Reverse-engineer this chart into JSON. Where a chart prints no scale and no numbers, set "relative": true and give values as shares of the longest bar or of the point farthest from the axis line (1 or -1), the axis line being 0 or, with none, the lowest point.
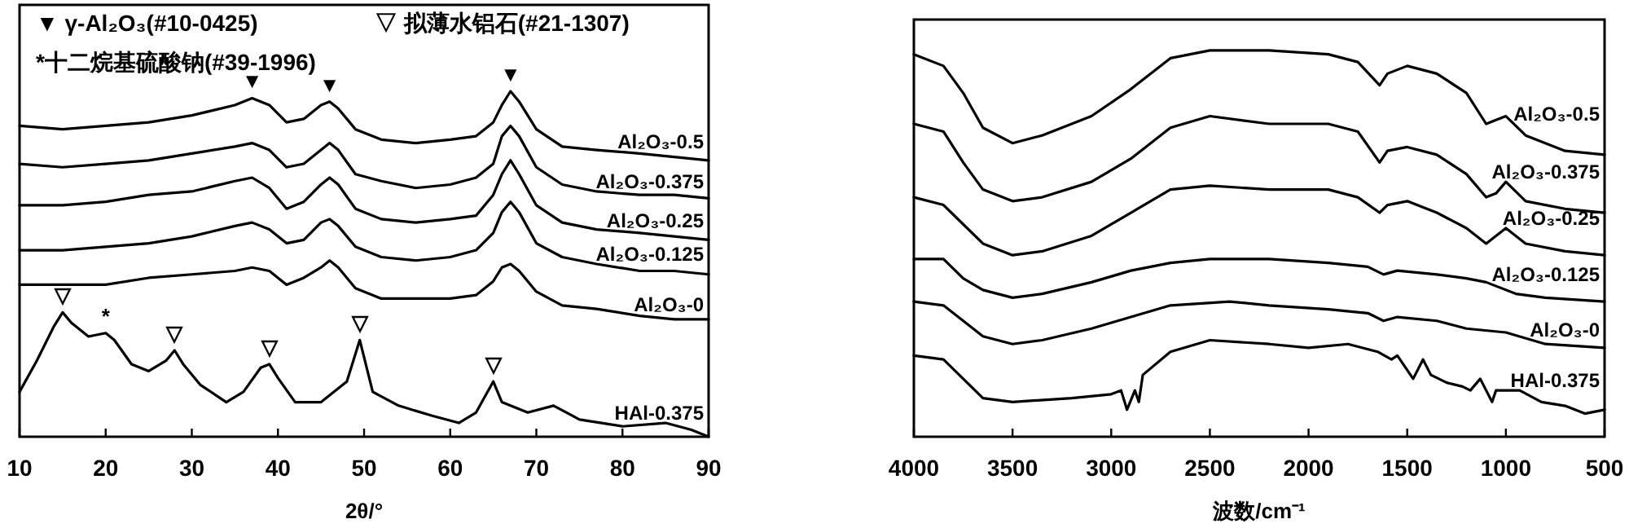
{
  "chart_data": [
    {
      "type": "line",
      "relative": true,
      "xlabel": "2θ/°",
      "xlim": [
        10,
        90
      ],
      "xticks": [
        10,
        20,
        30,
        40,
        50,
        60,
        70,
        80,
        90
      ],
      "x": [
        10,
        15,
        20,
        25,
        30,
        35,
        37,
        39,
        41,
        43,
        45,
        46,
        47,
        49,
        52,
        56,
        60,
        63,
        65,
        66,
        67,
        68,
        70,
        73,
        77,
        82,
        86,
        90
      ],
      "series": [
        {
          "name": "Al₂O₃-0.5",
          "color": "#000000",
          "values": [
            0.9,
            0.89,
            0.9,
            0.91,
            0.93,
            0.96,
            0.98,
            0.96,
            0.91,
            0.92,
            0.96,
            0.97,
            0.95,
            0.89,
            0.86,
            0.85,
            0.86,
            0.87,
            0.91,
            0.96,
            1.0,
            0.97,
            0.89,
            0.84,
            0.83,
            0.82,
            0.81,
            0.8
          ]
        },
        {
          "name": "Al₂O₃-0.375",
          "color": "#000000",
          "values": [
            0.79,
            0.78,
            0.79,
            0.8,
            0.82,
            0.84,
            0.85,
            0.83,
            0.78,
            0.79,
            0.83,
            0.85,
            0.83,
            0.76,
            0.74,
            0.72,
            0.73,
            0.75,
            0.79,
            0.87,
            0.9,
            0.87,
            0.78,
            0.73,
            0.71,
            0.7,
            0.7,
            0.69
          ]
        },
        {
          "name": "Al₂O₃-0.25",
          "color": "#000000",
          "values": [
            0.67,
            0.67,
            0.68,
            0.7,
            0.71,
            0.74,
            0.75,
            0.72,
            0.66,
            0.68,
            0.73,
            0.75,
            0.73,
            0.66,
            0.63,
            0.62,
            0.63,
            0.64,
            0.7,
            0.76,
            0.8,
            0.76,
            0.67,
            0.62,
            0.6,
            0.59,
            0.58,
            0.57
          ]
        },
        {
          "name": "Al₂O₃-0.125",
          "color": "#000000",
          "values": [
            0.54,
            0.54,
            0.55,
            0.56,
            0.58,
            0.61,
            0.62,
            0.6,
            0.56,
            0.57,
            0.62,
            0.63,
            0.61,
            0.55,
            0.52,
            0.51,
            0.52,
            0.54,
            0.59,
            0.65,
            0.68,
            0.65,
            0.56,
            0.52,
            0.5,
            0.48,
            0.48,
            0.47
          ]
        },
        {
          "name": "Al₂O₃-0",
          "color": "#000000",
          "values": [
            0.44,
            0.44,
            0.44,
            0.46,
            0.47,
            0.48,
            0.49,
            0.48,
            0.44,
            0.46,
            0.49,
            0.51,
            0.49,
            0.43,
            0.4,
            0.4,
            0.4,
            0.41,
            0.45,
            0.49,
            0.5,
            0.48,
            0.42,
            0.38,
            0.37,
            0.35,
            0.34,
            0.34
          ]
        },
        {
          "name": "HAl-0.375",
          "color": "#000000",
          "x": [
            10,
            12,
            14,
            15,
            16,
            18,
            20,
            21,
            23,
            25,
            27,
            28,
            29,
            31,
            34,
            36,
            38,
            39,
            40,
            42,
            45,
            48,
            49.5,
            51,
            54,
            58,
            61,
            63,
            65,
            66,
            69,
            72,
            75,
            80,
            85,
            88,
            90
          ],
          "values": [
            0.13,
            0.22,
            0.32,
            0.36,
            0.33,
            0.29,
            0.3,
            0.28,
            0.21,
            0.19,
            0.22,
            0.25,
            0.21,
            0.15,
            0.1,
            0.13,
            0.2,
            0.21,
            0.17,
            0.1,
            0.1,
            0.16,
            0.28,
            0.13,
            0.09,
            0.06,
            0.04,
            0.07,
            0.16,
            0.1,
            0.07,
            0.09,
            0.05,
            0.03,
            0.04,
            0.02,
            0.0
          ]
        }
      ],
      "annotations": [
        "▼ γ-Al₂O₃(#10-0425)",
        "▽ 拟薄水铝石(#21-1307)",
        "*十二烷基硫酸钠(#39-1996)",
        {
          "text": "▼",
          "x": 37,
          "y": 0.98
        },
        {
          "text": "▼",
          "x": 46,
          "y": 0.97
        },
        {
          "text": "▼",
          "x": 67,
          "y": 1.0
        },
        {
          "text": "▽",
          "x": 15,
          "y": 0.36
        },
        {
          "text": "*",
          "x": 20,
          "y": 0.3
        },
        {
          "text": "▽",
          "x": 28,
          "y": 0.25
        },
        {
          "text": "▽",
          "x": 39,
          "y": 0.21
        },
        {
          "text": "▽",
          "x": 49.5,
          "y": 0.28
        },
        {
          "text": "▽",
          "x": 65,
          "y": 0.16
        }
      ]
    },
    {
      "type": "line",
      "relative": true,
      "xlabel": "波数/cm⁻¹",
      "xlim": [
        4000,
        500
      ],
      "xticks": [
        4000,
        3500,
        3000,
        2500,
        2000,
        1500,
        1000,
        500
      ],
      "x": [
        4000,
        3850,
        3750,
        3650,
        3500,
        3350,
        3100,
        2900,
        2700,
        2500,
        2200,
        1900,
        1750,
        1640,
        1600,
        1500,
        1350,
        1200,
        1100,
        1050,
        1000,
        900,
        700,
        500
      ],
      "series": [
        {
          "name": "Al₂O₃-0.5",
          "color": "#000000",
          "values": [
            0.99,
            0.96,
            0.89,
            0.8,
            0.76,
            0.78,
            0.83,
            0.9,
            0.98,
            1.0,
            1.0,
            0.99,
            0.97,
            0.91,
            0.94,
            0.96,
            0.94,
            0.89,
            0.81,
            0.82,
            0.83,
            0.78,
            0.74,
            0.73
          ]
        },
        {
          "name": "Al₂O₃-0.375",
          "color": "#000000",
          "values": [
            0.81,
            0.79,
            0.71,
            0.64,
            0.61,
            0.62,
            0.66,
            0.72,
            0.8,
            0.83,
            0.81,
            0.81,
            0.79,
            0.71,
            0.74,
            0.75,
            0.73,
            0.68,
            0.62,
            0.63,
            0.66,
            0.61,
            0.59,
            0.58
          ]
        },
        {
          "name": "Al₂O₃-0.25",
          "color": "#000000",
          "values": [
            0.62,
            0.6,
            0.55,
            0.5,
            0.47,
            0.48,
            0.52,
            0.58,
            0.64,
            0.65,
            0.64,
            0.64,
            0.62,
            0.58,
            0.6,
            0.61,
            0.58,
            0.54,
            0.5,
            0.52,
            0.54,
            0.5,
            0.48,
            0.47
          ]
        },
        {
          "name": "Al₂O₃-0.125",
          "color": "#000000",
          "x": [
            4000,
            3850,
            3750,
            3650,
            3500,
            3350,
            3100,
            2900,
            2700,
            2500,
            2200,
            1900,
            1700,
            1620,
            1550,
            1350,
            1200,
            1100,
            950,
            800,
            500
          ],
          "values": [
            0.46,
            0.46,
            0.41,
            0.38,
            0.36,
            0.37,
            0.4,
            0.43,
            0.45,
            0.46,
            0.46,
            0.45,
            0.44,
            0.42,
            0.43,
            0.42,
            0.41,
            0.4,
            0.37,
            0.36,
            0.35
          ]
        },
        {
          "name": "Al₂O₃-0",
          "color": "#000000",
          "x": [
            4000,
            3850,
            3750,
            3650,
            3500,
            3350,
            3100,
            2900,
            2700,
            2400,
            2200,
            1900,
            1700,
            1620,
            1550,
            1350,
            1200,
            1000,
            800,
            500
          ],
          "values": [
            0.35,
            0.34,
            0.3,
            0.26,
            0.24,
            0.25,
            0.28,
            0.31,
            0.34,
            0.35,
            0.34,
            0.33,
            0.32,
            0.3,
            0.31,
            0.3,
            0.28,
            0.27,
            0.24,
            0.23
          ]
        },
        {
          "name": "HAl-0.375",
          "color": "#000000",
          "x": [
            4000,
            3850,
            3750,
            3650,
            3500,
            3200,
            3000,
            2950,
            2920,
            2880,
            2860,
            2840,
            2700,
            2500,
            2200,
            2000,
            1800,
            1650,
            1580,
            1550,
            1470,
            1420,
            1380,
            1300,
            1220,
            1180,
            1130,
            1100,
            1070,
            1050,
            1000,
            930,
            820,
            700,
            600,
            500
          ],
          "values": [
            0.21,
            0.2,
            0.15,
            0.1,
            0.09,
            0.1,
            0.11,
            0.12,
            0.07,
            0.12,
            0.09,
            0.16,
            0.22,
            0.25,
            0.24,
            0.23,
            0.24,
            0.22,
            0.2,
            0.21,
            0.15,
            0.2,
            0.16,
            0.14,
            0.13,
            0.12,
            0.15,
            0.12,
            0.09,
            0.12,
            0.12,
            0.12,
            0.09,
            0.08,
            0.06,
            0.07
          ]
        }
      ]
    }
  ]
}
